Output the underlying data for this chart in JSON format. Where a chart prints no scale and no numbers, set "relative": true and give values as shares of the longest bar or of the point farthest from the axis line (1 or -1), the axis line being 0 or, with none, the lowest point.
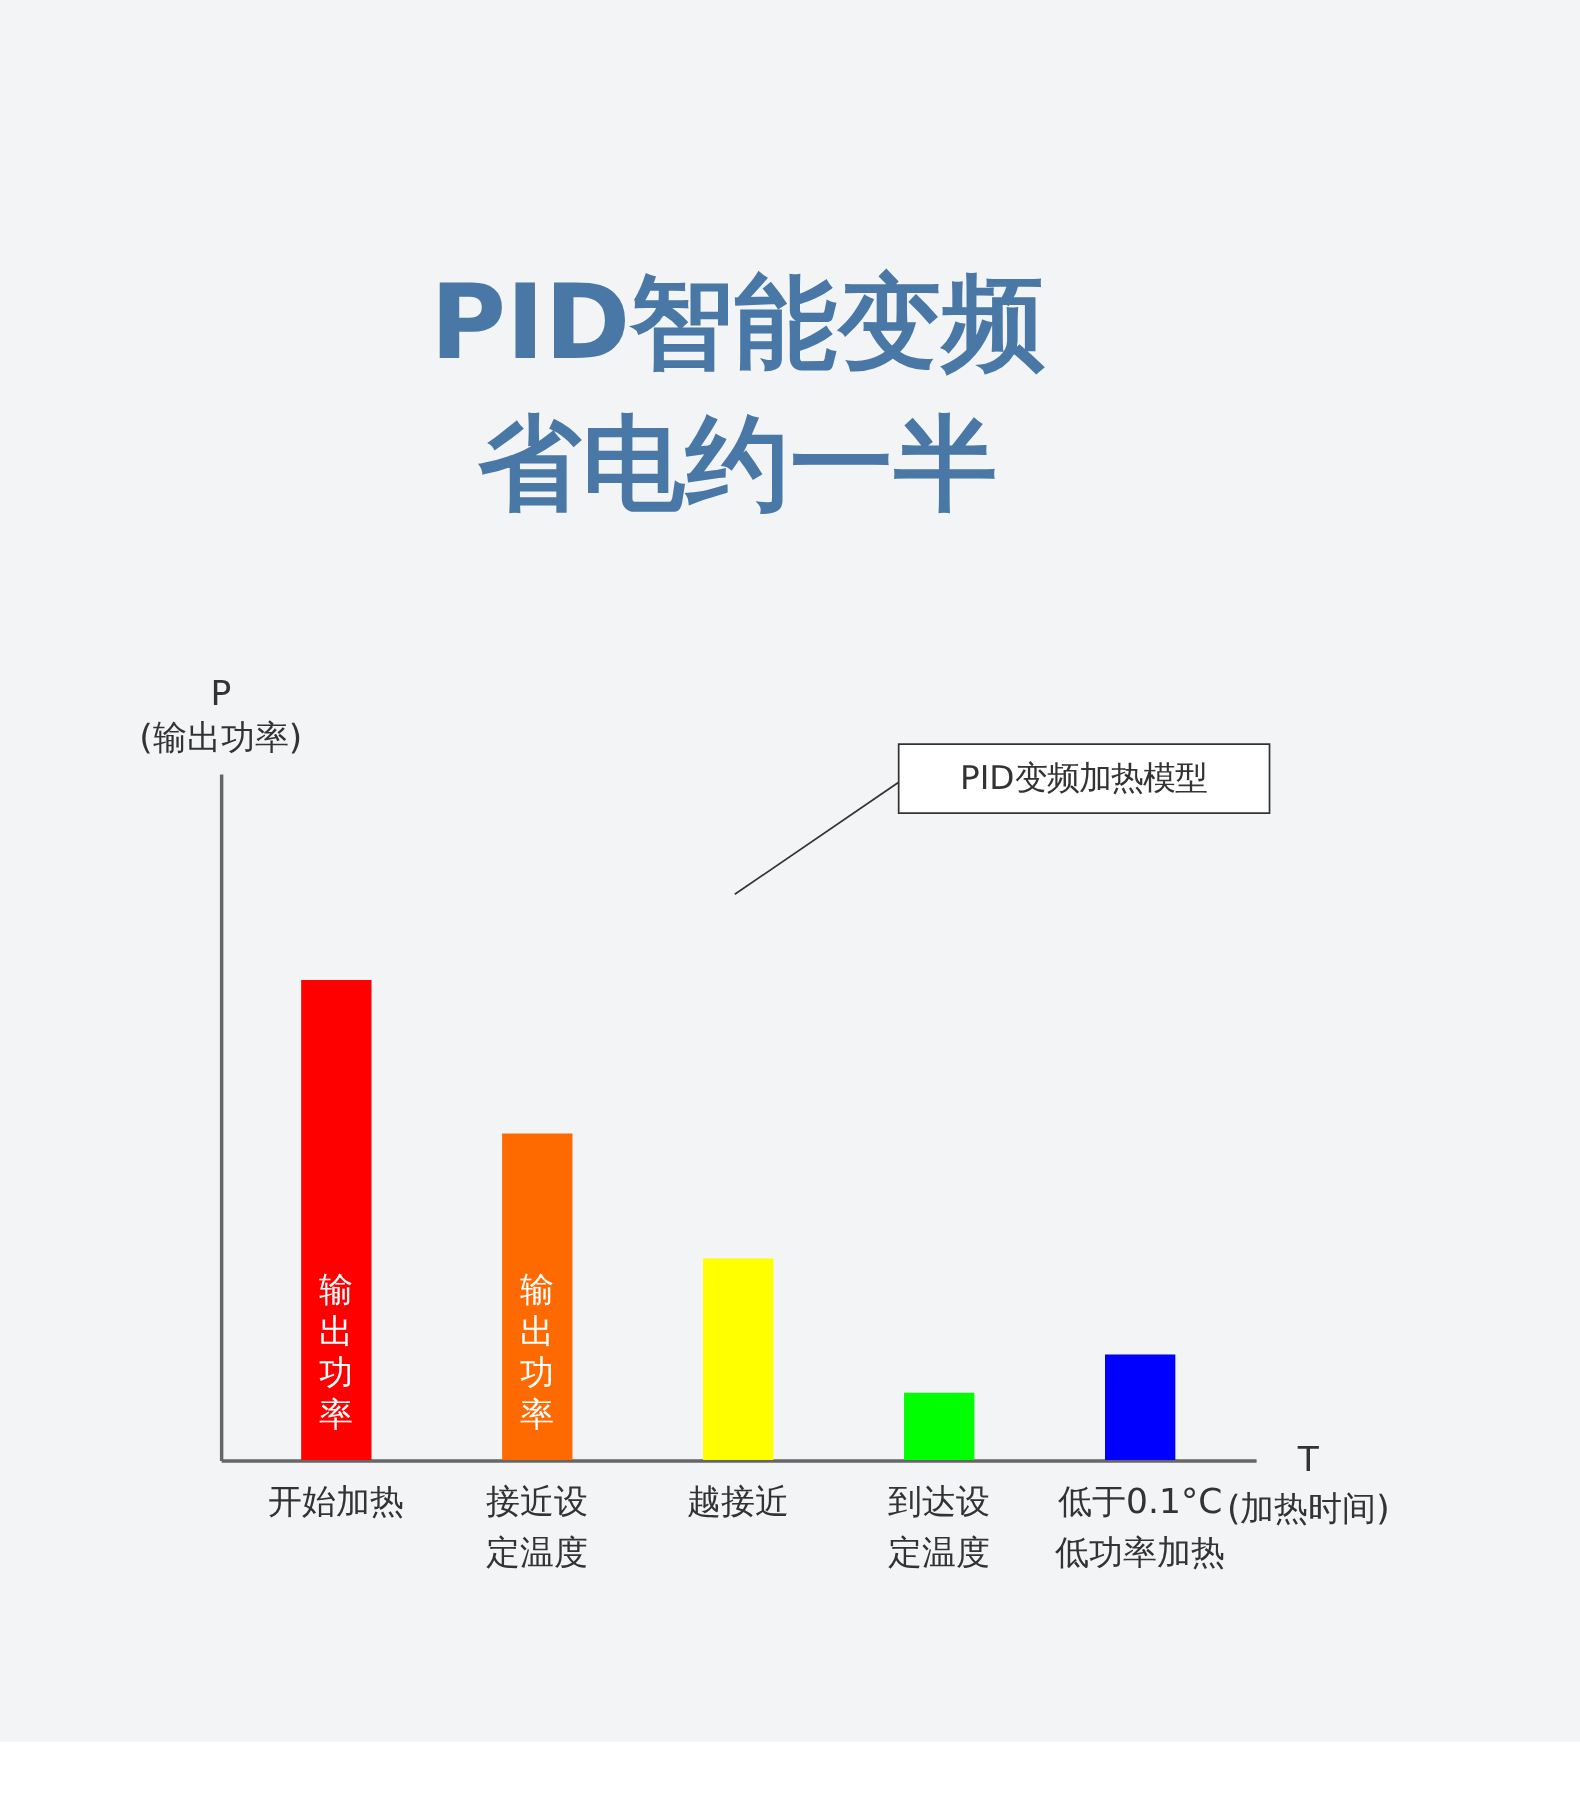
{
  "chart_data": {
    "type": "bar",
    "title": "PID智能变频省电约一半",
    "relative": true,
    "categories": [
      "开始加热",
      "接近设定温度",
      "越接近",
      "到达设定温度",
      "低于0.1°C低功率加热"
    ],
    "values": [
      1,
      0.68,
      0.42,
      0.14,
      0.22
    ],
    "colors": [
      "#ff0000",
      "#ff6a00",
      "#ffff00",
      "#00ff00",
      "#0000ff"
    ],
    "xlabel": "T\n(加热时间)",
    "annotations": [
      "P\n(输出功率)",
      "PID变频加热模型",
      "输出功率",
      "输出功率"
    ],
    "grid": false,
    "legend": false
  }
}
